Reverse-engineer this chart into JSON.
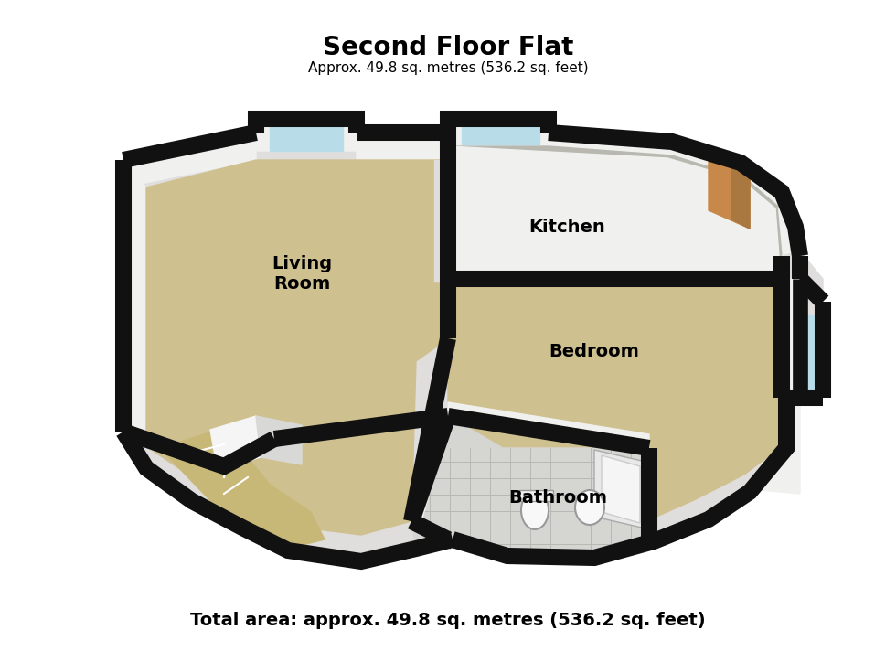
{
  "title": "Second Floor Flat",
  "subtitle": "Approx. 49.8 sq. metres (536.2 sq. feet)",
  "footer": "Total area: approx. 49.8 sq. metres (536.2 sq. feet)",
  "bg_color": "#ffffff",
  "wall_black": "#111111",
  "floor_living": "#cfc090",
  "floor_kitchen": "#b8b8b0",
  "floor_bathroom": "#d5d5d2",
  "floor_bedroom": "#cfc090",
  "wall_white_face": "#f0f0ee",
  "wall_light_face": "#e0dedd",
  "wall_darker": "#c8c8c5",
  "wall_dark_face": "#b0b0ae",
  "light_blue": "#b8dce8",
  "door_white": "#f5f5f5",
  "door_gray": "#d8d8d6",
  "radiator_orange": "#c8884a",
  "stair_tan": "#c8b878",
  "kitchen_tile": "#b0b0a8",
  "bath_tile": "#c8c8c5",
  "labels": {
    "living_room": "Living\nRoom",
    "kitchen": "Kitchen",
    "bedroom": "Bedroom",
    "bathroom": "Bathroom"
  },
  "label_fontsize": 14,
  "title_fontsize": 20,
  "subtitle_fontsize": 11,
  "footer_fontsize": 14
}
